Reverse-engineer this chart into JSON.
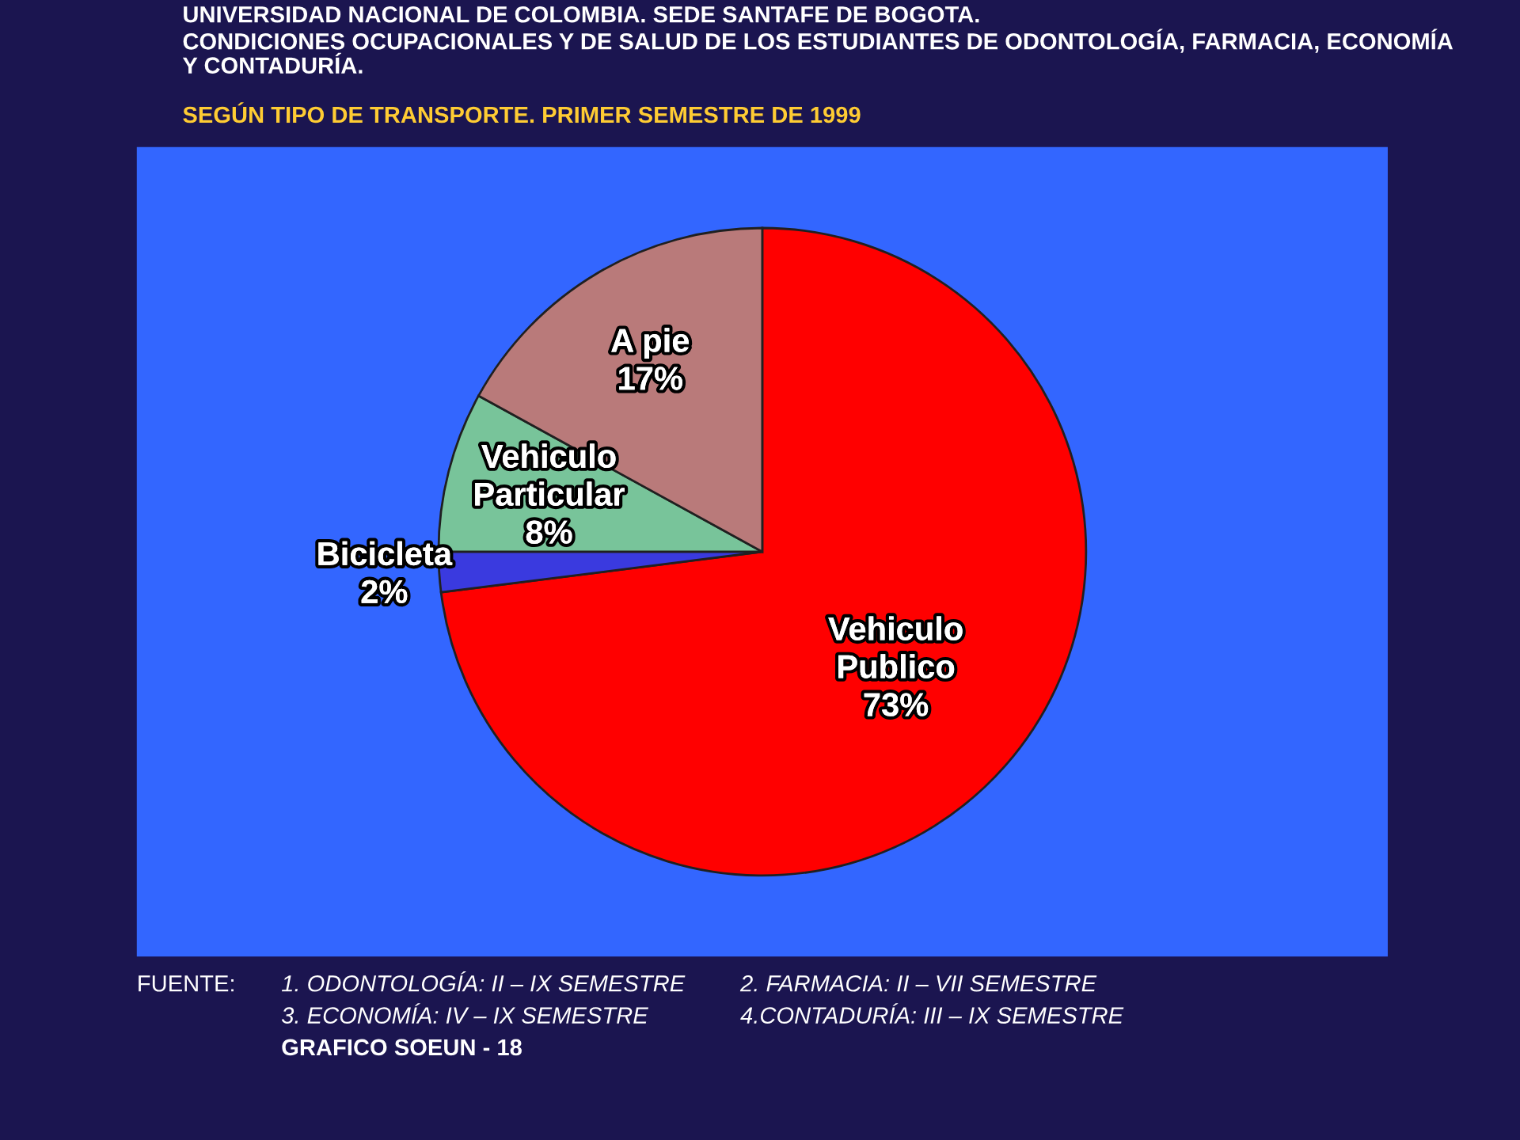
{
  "chart_data": {
    "type": "pie",
    "title": "UNIVERSIDAD NACIONAL DE COLOMBIA. SEDE SANTAFE DE BOGOTA.\nCONDICIONES OCUPACIONALES Y DE SALUD DE LOS ESTUDIANTES DE ODONTOLOGÍA, FARMACIA, ECONOMÍA\nY CONTADURÍA.",
    "subtitle": "SEGÚN TIPO DE TRANSPORTE. PRIMER SEMESTRE DE 1999",
    "categories": [
      "Vehiculo Publico",
      "Bicicleta",
      "Vehiculo Particular",
      "A pie"
    ],
    "values": [
      73,
      2,
      8,
      17
    ],
    "value_labels": [
      "73%",
      "2%",
      "8%",
      "17%"
    ],
    "colors": [
      "#ff0000",
      "#3a3adf",
      "#78c49a",
      "#b97a7a"
    ],
    "annotations": [
      "FUENTE:",
      "1. ODONTOLOGÍA: II – IX SEMESTRE",
      "2. FARMACIA: II – VII SEMESTRE",
      "3. ECONOMÍA: IV – IX SEMESTRE",
      "4.CONTADURÍA: III – IX SEMESTRE",
      "GRAFICO SOEUN - 18"
    ],
    "legend": false
  }
}
